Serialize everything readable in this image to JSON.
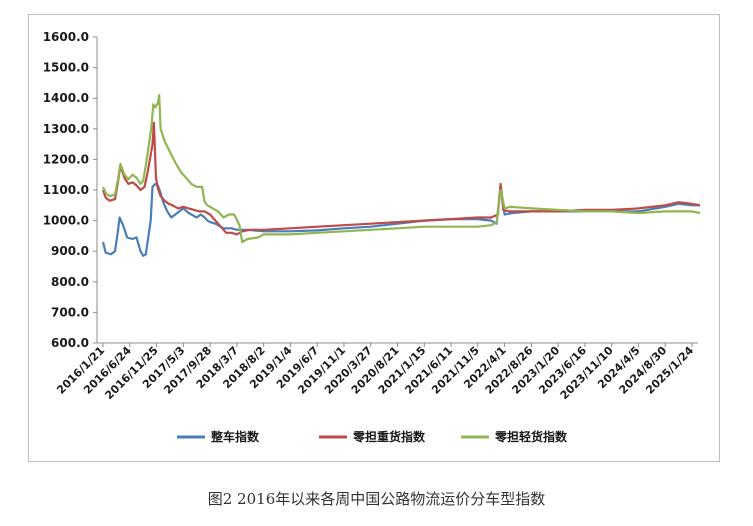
{
  "caption": "图2 2016年以来各周中国公路物流运价分车型指数",
  "chart_data": {
    "type": "line",
    "title": "",
    "xlabel": "",
    "ylabel": "",
    "ylim": [
      600,
      1600
    ],
    "yticks": [
      "600.0",
      "700.0",
      "800.0",
      "900.0",
      "1000.0",
      "1100.0",
      "1200.0",
      "1300.0",
      "1400.0",
      "1500.0",
      "1600.0"
    ],
    "xticks": [
      "2016/1/21",
      "2016/6/24",
      "2016/11/25",
      "2017/5/3",
      "2017/9/28",
      "2018/3/7",
      "2018/8/2",
      "2019/1/4",
      "2019/6/7",
      "2019/11/1",
      "2020/3/27",
      "2020/8/21",
      "2021/1/15",
      "2021/6/11",
      "2021/11/5",
      "2022/4/1",
      "2022/8/26",
      "2023/1/20",
      "2023/6/16",
      "2023/11/10",
      "2024/4/5",
      "2024/8/30",
      "2025/1/24"
    ],
    "legend_position": "bottom",
    "grid": false,
    "x_count": 23,
    "series": [
      {
        "name": "整车指数",
        "color": "#4a7ebb",
        "points": [
          [
            0,
            930
          ],
          [
            0.1,
            895
          ],
          [
            0.3,
            890
          ],
          [
            0.45,
            900
          ],
          [
            0.55,
            960
          ],
          [
            0.62,
            1010
          ],
          [
            0.75,
            985
          ],
          [
            0.9,
            945
          ],
          [
            1.1,
            940
          ],
          [
            1.25,
            945
          ],
          [
            1.4,
            900
          ],
          [
            1.5,
            885
          ],
          [
            1.6,
            890
          ],
          [
            1.7,
            950
          ],
          [
            1.78,
            1000
          ],
          [
            1.85,
            1110
          ],
          [
            1.95,
            1120
          ],
          [
            2.05,
            1115
          ],
          [
            2.15,
            1090
          ],
          [
            2.25,
            1060
          ],
          [
            2.4,
            1030
          ],
          [
            2.55,
            1010
          ],
          [
            2.7,
            1020
          ],
          [
            2.85,
            1030
          ],
          [
            3.0,
            1040
          ],
          [
            3.2,
            1025
          ],
          [
            3.4,
            1015
          ],
          [
            3.5,
            1010
          ],
          [
            3.65,
            1020
          ],
          [
            3.8,
            1010
          ],
          [
            3.9,
            1000
          ],
          [
            4.0,
            995
          ],
          [
            4.2,
            990
          ],
          [
            4.5,
            975
          ],
          [
            4.8,
            975
          ],
          [
            5.0,
            970
          ],
          [
            5.4,
            970
          ],
          [
            6.0,
            965
          ],
          [
            7,
            965
          ],
          [
            8,
            968
          ],
          [
            9,
            975
          ],
          [
            10,
            980
          ],
          [
            11,
            990
          ],
          [
            12,
            1000
          ],
          [
            13,
            1005
          ],
          [
            14,
            1005
          ],
          [
            14.5,
            1000
          ],
          [
            14.7,
            990
          ],
          [
            14.85,
            1115
          ],
          [
            15.0,
            1020
          ],
          [
            15.3,
            1025
          ],
          [
            16,
            1030
          ],
          [
            17,
            1030
          ],
          [
            18,
            1030
          ],
          [
            19,
            1030
          ],
          [
            20,
            1030
          ],
          [
            21,
            1045
          ],
          [
            21.5,
            1055
          ],
          [
            22,
            1050
          ],
          [
            22.3,
            1050
          ]
        ]
      },
      {
        "name": "零担重货指数",
        "color": "#be4b48",
        "points": [
          [
            0,
            1100
          ],
          [
            0.1,
            1075
          ],
          [
            0.25,
            1065
          ],
          [
            0.45,
            1070
          ],
          [
            0.55,
            1120
          ],
          [
            0.65,
            1180
          ],
          [
            0.8,
            1140
          ],
          [
            0.95,
            1120
          ],
          [
            1.1,
            1125
          ],
          [
            1.25,
            1115
          ],
          [
            1.4,
            1100
          ],
          [
            1.55,
            1110
          ],
          [
            1.65,
            1150
          ],
          [
            1.75,
            1200
          ],
          [
            1.85,
            1250
          ],
          [
            1.9,
            1320
          ],
          [
            1.98,
            1140
          ],
          [
            2.05,
            1105
          ],
          [
            2.15,
            1080
          ],
          [
            2.3,
            1065
          ],
          [
            2.45,
            1055
          ],
          [
            2.6,
            1050
          ],
          [
            2.8,
            1040
          ],
          [
            3.0,
            1045
          ],
          [
            3.2,
            1040
          ],
          [
            3.4,
            1035
          ],
          [
            3.6,
            1030
          ],
          [
            3.8,
            1030
          ],
          [
            4.0,
            1020
          ],
          [
            4.2,
            1000
          ],
          [
            4.4,
            980
          ],
          [
            4.6,
            960
          ],
          [
            4.8,
            960
          ],
          [
            5.0,
            955
          ],
          [
            5.2,
            965
          ],
          [
            5.5,
            970
          ],
          [
            6.0,
            970
          ],
          [
            7,
            975
          ],
          [
            8,
            980
          ],
          [
            9,
            985
          ],
          [
            10,
            990
          ],
          [
            11,
            995
          ],
          [
            12,
            1000
          ],
          [
            13,
            1005
          ],
          [
            14,
            1010
          ],
          [
            14.5,
            1010
          ],
          [
            14.75,
            1020
          ],
          [
            14.85,
            1120
          ],
          [
            14.95,
            1035
          ],
          [
            15.2,
            1030
          ],
          [
            16,
            1030
          ],
          [
            17,
            1030
          ],
          [
            18,
            1035
          ],
          [
            19,
            1035
          ],
          [
            20,
            1040
          ],
          [
            21,
            1050
          ],
          [
            21.5,
            1060
          ],
          [
            22,
            1055
          ],
          [
            22.3,
            1050
          ]
        ]
      },
      {
        "name": "零担轻货指数",
        "color": "#8fb651",
        "points": [
          [
            0,
            1110
          ],
          [
            0.1,
            1090
          ],
          [
            0.25,
            1080
          ],
          [
            0.45,
            1085
          ],
          [
            0.55,
            1130
          ],
          [
            0.65,
            1185
          ],
          [
            0.8,
            1150
          ],
          [
            0.95,
            1135
          ],
          [
            1.1,
            1150
          ],
          [
            1.25,
            1140
          ],
          [
            1.4,
            1120
          ],
          [
            1.5,
            1130
          ],
          [
            1.6,
            1180
          ],
          [
            1.7,
            1240
          ],
          [
            1.8,
            1300
          ],
          [
            1.88,
            1380
          ],
          [
            1.95,
            1370
          ],
          [
            2.05,
            1385
          ],
          [
            2.1,
            1410
          ],
          [
            2.15,
            1300
          ],
          [
            2.3,
            1260
          ],
          [
            2.5,
            1225
          ],
          [
            2.7,
            1190
          ],
          [
            2.9,
            1160
          ],
          [
            3.1,
            1140
          ],
          [
            3.3,
            1120
          ],
          [
            3.5,
            1110
          ],
          [
            3.7,
            1110
          ],
          [
            3.8,
            1060
          ],
          [
            3.9,
            1050
          ],
          [
            4.1,
            1040
          ],
          [
            4.3,
            1030
          ],
          [
            4.5,
            1010
          ],
          [
            4.7,
            1020
          ],
          [
            4.9,
            1020
          ],
          [
            5.1,
            985
          ],
          [
            5.2,
            930
          ],
          [
            5.4,
            940
          ],
          [
            5.8,
            945
          ],
          [
            6.0,
            955
          ],
          [
            7,
            955
          ],
          [
            8,
            960
          ],
          [
            9,
            965
          ],
          [
            10,
            970
          ],
          [
            11,
            975
          ],
          [
            12,
            980
          ],
          [
            13,
            980
          ],
          [
            14,
            980
          ],
          [
            14.5,
            985
          ],
          [
            14.7,
            995
          ],
          [
            14.85,
            1100
          ],
          [
            15.0,
            1040
          ],
          [
            15.2,
            1045
          ],
          [
            16,
            1040
          ],
          [
            17,
            1035
          ],
          [
            18,
            1030
          ],
          [
            19,
            1030
          ],
          [
            20,
            1025
          ],
          [
            21,
            1030
          ],
          [
            22,
            1030
          ],
          [
            22.3,
            1025
          ]
        ]
      }
    ]
  }
}
